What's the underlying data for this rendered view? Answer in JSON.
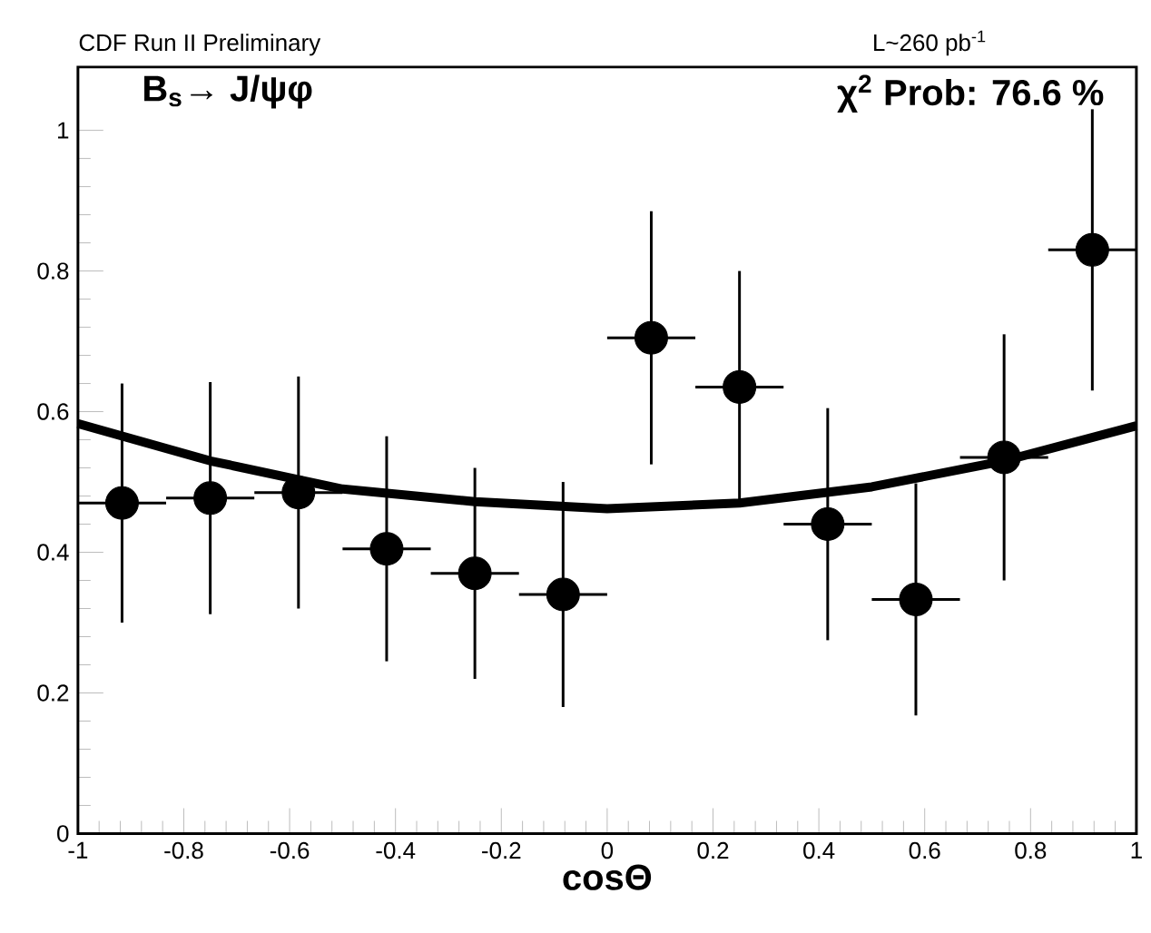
{
  "chart_data": {
    "type": "scatter",
    "xlabel": "cosΘ",
    "annotations": [
      "CDF Run II Preliminary",
      "L~260 pb$^{-1}$",
      "B$_{s}$→ J/ψφ",
      "χ$^{2}$ Prob: 76.6 %"
    ],
    "xlim": [
      -1,
      1
    ],
    "ylim": [
      0,
      1.09
    ],
    "xticks": [
      -1,
      -0.8,
      -0.6,
      -0.4,
      -0.2,
      0,
      0.2,
      0.4,
      0.6,
      0.8,
      1
    ],
    "yticks": [
      0,
      0.2,
      0.4,
      0.6,
      0.8,
      1
    ],
    "grid": false,
    "series": [
      {
        "color": "#000000",
        "marker": "circle",
        "x": [
          -0.9167,
          -0.75,
          -0.5833,
          -0.4167,
          -0.25,
          -0.0833,
          0.0833,
          0.25,
          0.4167,
          0.5833,
          0.75,
          0.9167
        ],
        "values": [
          0.47,
          0.477,
          0.485,
          0.405,
          0.37,
          0.34,
          0.705,
          0.635,
          0.44,
          0.333,
          0.535,
          0.83
        ],
        "errors": [
          0.17,
          0.165,
          0.165,
          0.16,
          0.15,
          0.16,
          0.18,
          0.165,
          0.165,
          0.165,
          0.175,
          0.2
        ],
        "xerrors": [
          0.0833,
          0.0833,
          0.0833,
          0.0833,
          0.0833,
          0.0833,
          0.0833,
          0.0833,
          0.0833,
          0.0833,
          0.0833,
          0.0833
        ]
      },
      {
        "type": "line",
        "color": "#000000",
        "marker": "none",
        "line_style": "solid",
        "x": [
          -1,
          -0.75,
          -0.5,
          -0.25,
          0,
          0.25,
          0.5,
          0.75,
          1
        ],
        "values": [
          0.583,
          0.53,
          0.49,
          0.472,
          0.462,
          0.47,
          0.493,
          0.53,
          0.58
        ]
      }
    ]
  }
}
